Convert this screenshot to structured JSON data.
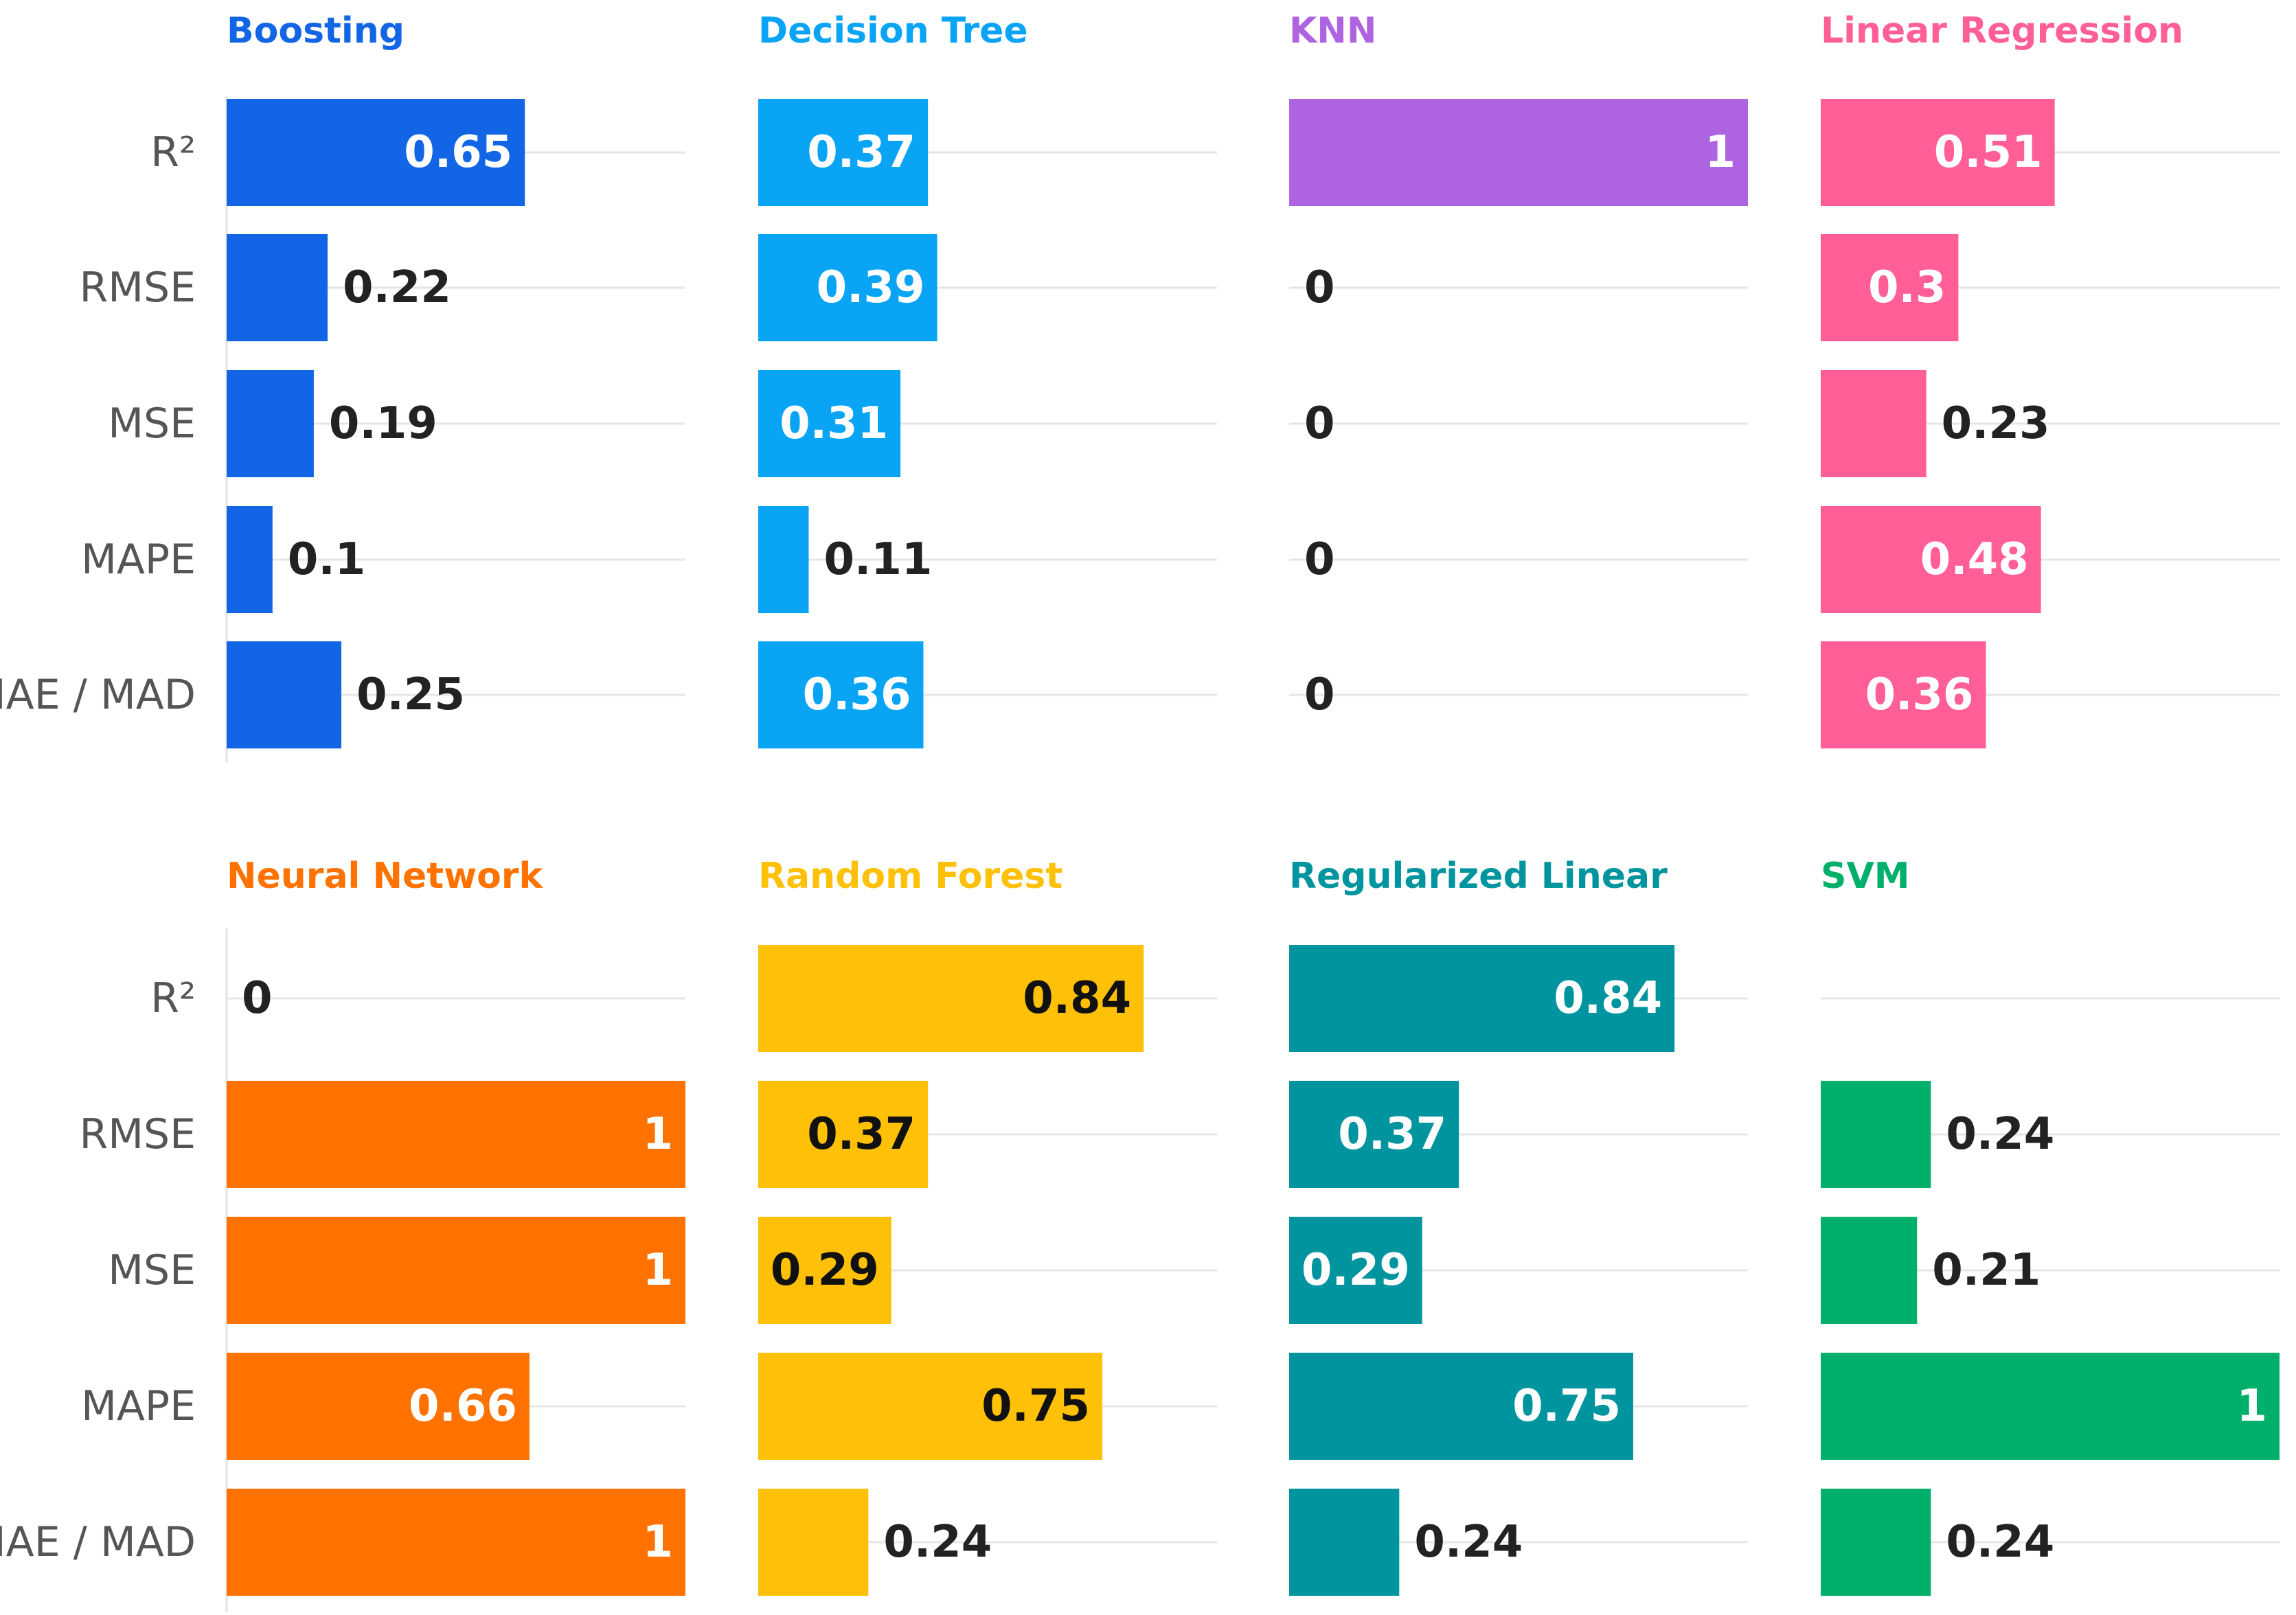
{
  "chart_data": {
    "type": "bar",
    "orientation": "horizontal",
    "layout": "small-multiples",
    "grid": true,
    "categories": [
      "R²",
      "RMSE",
      "MSE",
      "MAPE",
      "MAE / MAD"
    ],
    "xlim": [
      0,
      1
    ],
    "series": [
      {
        "name": "Boosting",
        "color": "#1266E5",
        "values": [
          0.65,
          0.22,
          0.19,
          0.1,
          0.25
        ]
      },
      {
        "name": "Decision Tree",
        "color": "#0AA4F5",
        "values": [
          0.37,
          0.39,
          0.31,
          0.11,
          0.36
        ]
      },
      {
        "name": "KNN",
        "color": "#AE63E0",
        "values": [
          1,
          0,
          0,
          0,
          0
        ]
      },
      {
        "name": "Linear Regression",
        "color": "#FF5F96",
        "values": [
          0.51,
          0.3,
          0.23,
          0.48,
          0.36
        ]
      },
      {
        "name": "Neural Network",
        "color": "#FF7200",
        "values": [
          0,
          1,
          1,
          0.66,
          1
        ]
      },
      {
        "name": "Random Forest",
        "color": "#FFC107",
        "values": [
          0.84,
          0.37,
          0.29,
          0.75,
          0.24
        ]
      },
      {
        "name": "Regularized Linear",
        "color": "#00959E",
        "values": [
          0.84,
          0.37,
          0.29,
          0.75,
          0.24
        ]
      },
      {
        "name": "SVM",
        "color": "#00AF6A",
        "values": [
          null,
          0.24,
          0.21,
          1,
          0.24
        ]
      }
    ],
    "label_text_color": {
      "Random Forest": "#111111"
    }
  }
}
